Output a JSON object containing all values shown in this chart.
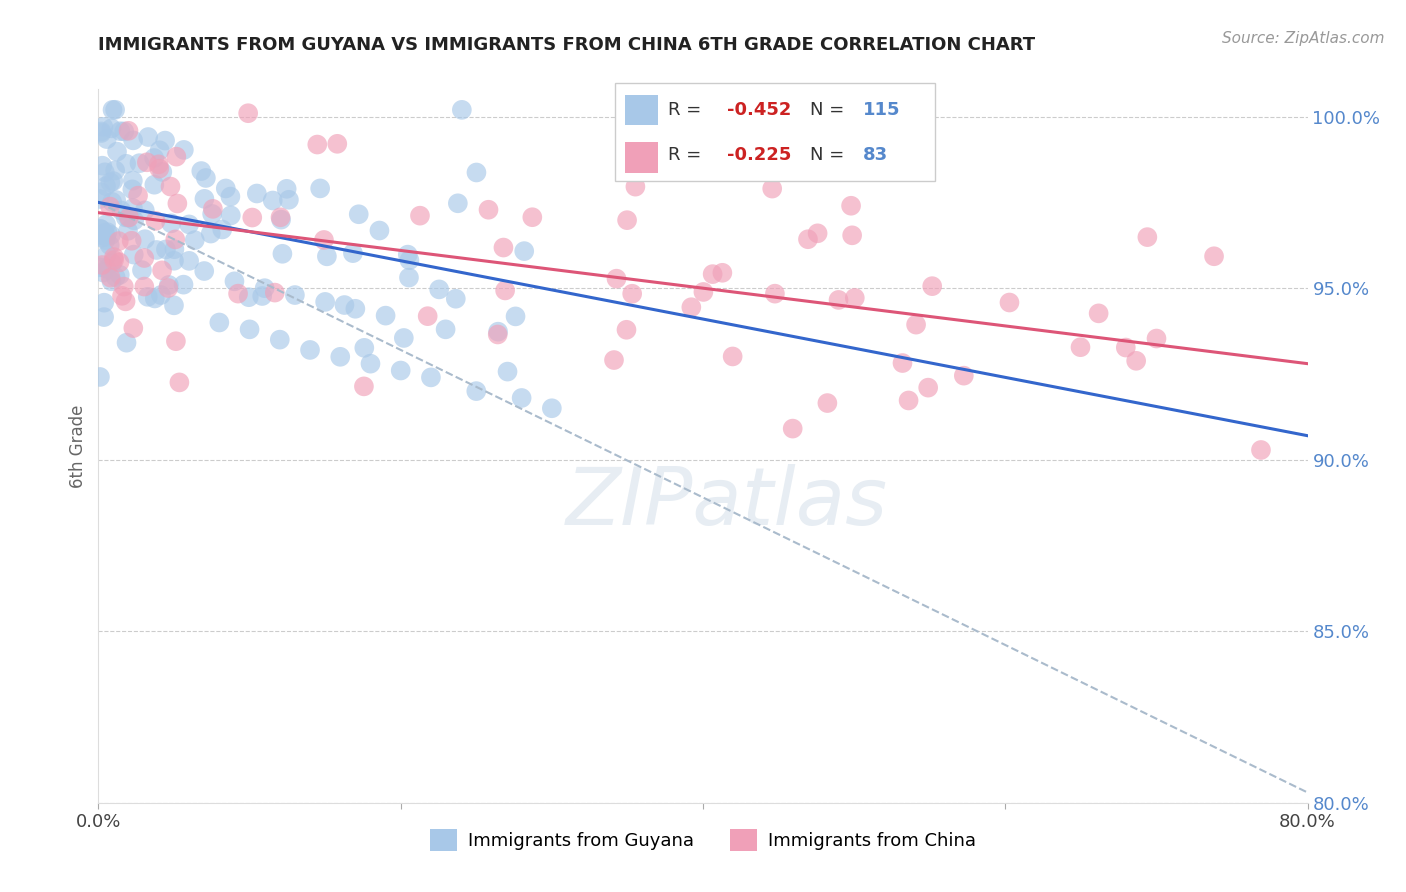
{
  "title": "IMMIGRANTS FROM GUYANA VS IMMIGRANTS FROM CHINA 6TH GRADE CORRELATION CHART",
  "source": "Source: ZipAtlas.com",
  "ylabel": "6th Grade",
  "legend_labels": [
    "Immigrants from Guyana",
    "Immigrants from China"
  ],
  "blue_color": "#A8C8E8",
  "pink_color": "#F0A0B8",
  "blue_line_color": "#3366CC",
  "pink_line_color": "#DD5577",
  "gray_dashed_color": "#AABBCC",
  "R_blue": -0.452,
  "N_blue": 115,
  "R_pink": -0.225,
  "N_pink": 83,
  "x_min": 0.0,
  "x_max": 0.8,
  "y_min": 0.8,
  "y_max": 1.008,
  "blue_line_x0": 0.0,
  "blue_line_y0": 0.975,
  "blue_line_x1": 0.8,
  "blue_line_y1": 0.907,
  "pink_line_x0": 0.0,
  "pink_line_y0": 0.972,
  "pink_line_x1": 0.8,
  "pink_line_y1": 0.928,
  "gray_line_x0": 0.0,
  "gray_line_y0": 0.975,
  "gray_line_x1": 0.8,
  "gray_line_y1": 0.803
}
